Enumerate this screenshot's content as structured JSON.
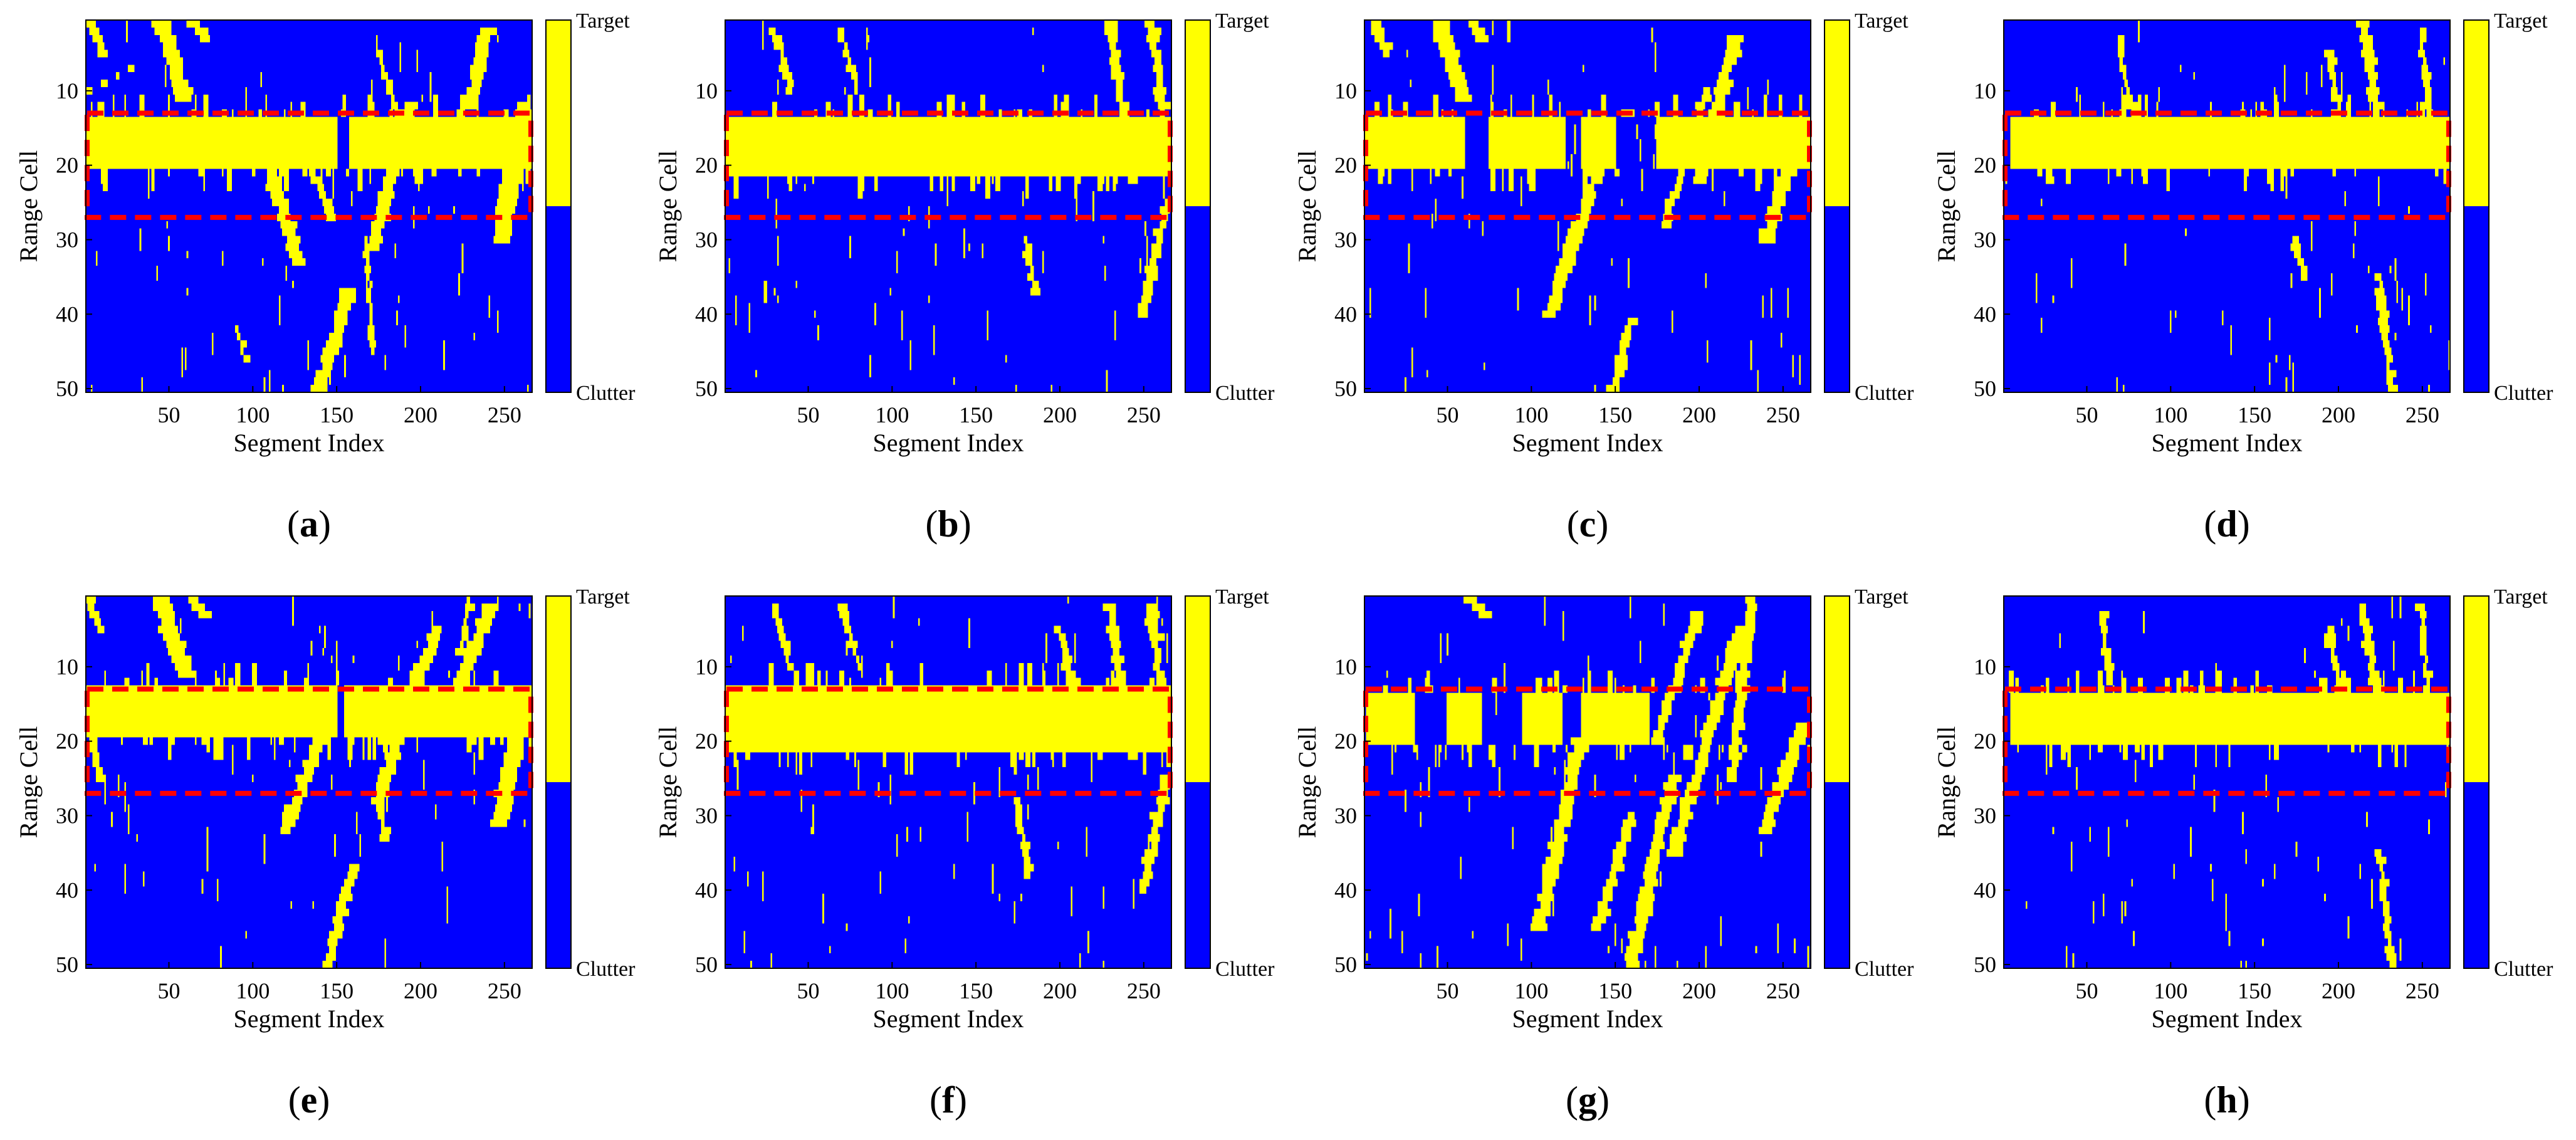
{
  "figure": {
    "colors": {
      "target": "#ffff00",
      "clutter": "#0000ff",
      "box": "#ff0000"
    }
  },
  "chart_data": [
    {
      "panel": "a",
      "caption": "(a)",
      "type": "heatmap",
      "title": "",
      "xlabel": "Segment Index",
      "ylabel": "Range Cell",
      "xlim": [
        1,
        266
      ],
      "ylim": [
        1,
        50
      ],
      "xticks": [
        "50",
        "100",
        "150",
        "200",
        "250"
      ],
      "yticks": [
        "10",
        "20",
        "30",
        "40",
        "50"
      ],
      "colorbar": {
        "top": "Target",
        "bottom": "Clutter"
      },
      "target_box": {
        "x": [
          1,
          266
        ],
        "y": [
          13,
          27
        ]
      },
      "row_band": {
        "start": 14,
        "end": 20,
        "cols": [
          [
            1,
            150
          ],
          [
            158,
            266
          ]
        ]
      },
      "streaks": [
        [
          1,
          0,
          12,
          5,
          3
        ],
        [
          3,
          10,
          28,
          7,
          2
        ],
        [
          45,
          0,
          60,
          11,
          5
        ],
        [
          62,
          0,
          72,
          3,
          4
        ],
        [
          175,
          5,
          200,
          22,
          2
        ],
        [
          110,
          20,
          128,
          33,
          4
        ],
        [
          135,
          20,
          148,
          27,
          3
        ],
        [
          195,
          12,
          172,
          31,
          4
        ],
        [
          240,
          2,
          230,
          12,
          4
        ],
        [
          263,
          12,
          248,
          30,
          5
        ],
        [
          140,
          50,
          158,
          37,
          4
        ],
        [
          168,
          30,
          172,
          45,
          1
        ],
        [
          92,
          42,
          96,
          46,
          1
        ]
      ]
    },
    {
      "panel": "b",
      "caption": "(b)",
      "type": "heatmap",
      "title": "",
      "xlabel": "Segment Index",
      "ylabel": "Range Cell",
      "xlim": [
        1,
        266
      ],
      "ylim": [
        1,
        50
      ],
      "xticks": [
        "50",
        "100",
        "150",
        "200",
        "250"
      ],
      "yticks": [
        "10",
        "20",
        "30",
        "40",
        "50"
      ],
      "colorbar": {
        "top": "Target",
        "bottom": "Clutter"
      },
      "target_box": {
        "x": [
          1,
          266
        ],
        "y": [
          13,
          27
        ]
      },
      "row_band": {
        "start": 14,
        "end": 21,
        "cols": [
          [
            1,
            266
          ]
        ]
      },
      "streaks": [
        [
          230,
          1,
          245,
          22,
          3
        ],
        [
          255,
          1,
          262,
          12,
          3
        ],
        [
          250,
          40,
          264,
          25,
          3
        ],
        [
          180,
          30,
          186,
          37,
          2
        ],
        [
          30,
          2,
          40,
          10,
          2
        ],
        [
          70,
          2,
          80,
          10,
          2
        ]
      ]
    },
    {
      "panel": "c",
      "caption": "(c)",
      "type": "heatmap",
      "title": "",
      "xlabel": "Segment Index",
      "ylabel": "Range Cell",
      "xlim": [
        1,
        266
      ],
      "ylim": [
        1,
        50
      ],
      "xticks": [
        "50",
        "100",
        "150",
        "200",
        "250"
      ],
      "yticks": [
        "10",
        "20",
        "30",
        "40",
        "50"
      ],
      "colorbar": {
        "top": "Target",
        "bottom": "Clutter"
      },
      "target_box": {
        "x": [
          1,
          266
        ],
        "y": [
          13,
          27
        ]
      },
      "row_band": {
        "start": 14,
        "end": 20,
        "cols": [
          [
            1,
            60
          ],
          [
            75,
            120
          ],
          [
            130,
            150
          ],
          [
            175,
            266
          ]
        ]
      },
      "streaks": [
        [
          45,
          0,
          60,
          11,
          5
        ],
        [
          62,
          0,
          72,
          3,
          4
        ],
        [
          112,
          40,
          145,
          17,
          4
        ],
        [
          180,
          28,
          205,
          10,
          3
        ],
        [
          200,
          22,
          222,
          3,
          4
        ],
        [
          240,
          30,
          262,
          15,
          4
        ],
        [
          150,
          50,
          160,
          41,
          3
        ],
        [
          5,
          0,
          15,
          5,
          3
        ]
      ]
    },
    {
      "panel": "d",
      "caption": "(d)",
      "type": "heatmap",
      "title": "",
      "xlabel": "Segment Index",
      "ylabel": "Range Cell",
      "xlim": [
        1,
        266
      ],
      "ylim": [
        1,
        50
      ],
      "xticks": [
        "50",
        "100",
        "150",
        "200",
        "250"
      ],
      "yticks": [
        "10",
        "20",
        "30",
        "40",
        "50"
      ],
      "colorbar": {
        "top": "Target",
        "bottom": "Clutter"
      },
      "target_box": {
        "x": [
          1,
          266
        ],
        "y": [
          13,
          27
        ]
      },
      "row_band": {
        "start": 14,
        "end": 20,
        "cols": [
          [
            5,
            266
          ]
        ]
      },
      "streaks": [
        [
          215,
          1,
          225,
          15,
          3
        ],
        [
          195,
          5,
          205,
          20,
          2
        ],
        [
          250,
          2,
          255,
          15,
          2
        ],
        [
          70,
          3,
          75,
          12,
          2
        ],
        [
          225,
          35,
          232,
          50,
          2
        ],
        [
          175,
          30,
          180,
          35,
          2
        ]
      ]
    },
    {
      "panel": "e",
      "caption": "(e)",
      "type": "heatmap",
      "title": "",
      "xlabel": "Segment Index",
      "ylabel": "Range Cell",
      "xlim": [
        1,
        266
      ],
      "ylim": [
        1,
        50
      ],
      "xticks": [
        "50",
        "100",
        "150",
        "200",
        "250"
      ],
      "yticks": [
        "10",
        "20",
        "30",
        "40",
        "50"
      ],
      "colorbar": {
        "top": "Target",
        "bottom": "Clutter"
      },
      "target_box": {
        "x": [
          1,
          266
        ],
        "y": [
          13,
          27
        ]
      },
      "row_band": {
        "start": 13,
        "end": 19,
        "cols": [
          [
            1,
            150
          ],
          [
            155,
            266
          ]
        ]
      },
      "streaks": [
        [
          1,
          0,
          10,
          5,
          3
        ],
        [
          2,
          18,
          10,
          25,
          2
        ],
        [
          45,
          1,
          60,
          11,
          5
        ],
        [
          62,
          0,
          72,
          3,
          4
        ],
        [
          120,
          32,
          140,
          20,
          4
        ],
        [
          195,
          15,
          175,
          28,
          4
        ],
        [
          210,
          5,
          185,
          20,
          4
        ],
        [
          242,
          2,
          225,
          12,
          4
        ],
        [
          262,
          13,
          248,
          31,
          5
        ],
        [
          145,
          50,
          160,
          37,
          3
        ],
        [
          175,
          28,
          180,
          33,
          2
        ],
        [
          225,
          8,
          230,
          1,
          2
        ]
      ]
    },
    {
      "panel": "f",
      "caption": "(f)",
      "type": "heatmap",
      "title": "",
      "xlabel": "Segment Index",
      "ylabel": "Range Cell",
      "xlim": [
        1,
        266
      ],
      "ylim": [
        1,
        50
      ],
      "xticks": [
        "50",
        "100",
        "150",
        "200",
        "250"
      ],
      "yticks": [
        "10",
        "20",
        "30",
        "40",
        "50"
      ],
      "colorbar": {
        "top": "Target",
        "bottom": "Clutter"
      },
      "target_box": {
        "x": [
          1,
          266
        ],
        "y": [
          13,
          27
        ]
      },
      "row_band": {
        "start": 13,
        "end": 21,
        "cols": [
          [
            1,
            266
          ]
        ]
      },
      "streaks": [
        [
          230,
          2,
          245,
          22,
          3
        ],
        [
          255,
          2,
          262,
          15,
          3
        ],
        [
          250,
          40,
          264,
          25,
          3
        ],
        [
          175,
          28,
          182,
          38,
          2
        ],
        [
          30,
          2,
          40,
          10,
          2
        ],
        [
          70,
          2,
          80,
          10,
          2
        ],
        [
          200,
          5,
          210,
          15,
          2
        ]
      ]
    },
    {
      "panel": "g",
      "caption": "(g)",
      "type": "heatmap",
      "title": "",
      "xlabel": "Segment Index",
      "ylabel": "Range Cell",
      "xlim": [
        1,
        266
      ],
      "ylim": [
        1,
        50
      ],
      "xticks": [
        "50",
        "100",
        "150",
        "200",
        "250"
      ],
      "yticks": [
        "10",
        "20",
        "30",
        "40",
        "50"
      ],
      "colorbar": {
        "top": "Target",
        "bottom": "Clutter"
      },
      "target_box": {
        "x": [
          1,
          266
        ],
        "y": [
          13,
          27
        ]
      },
      "row_band": {
        "start": 14,
        "end": 20,
        "cols": [
          [
            2,
            30
          ],
          [
            50,
            70
          ],
          [
            95,
            118
          ],
          [
            130,
            170
          ]
        ]
      },
      "streaks": [
        [
          62,
          0,
          72,
          3,
          4
        ],
        [
          105,
          45,
          130,
          20,
          4
        ],
        [
          140,
          45,
          160,
          30,
          3
        ],
        [
          160,
          50,
          185,
          25,
          4
        ],
        [
          185,
          35,
          225,
          5,
          4
        ],
        [
          220,
          25,
          232,
          1,
          3
        ],
        [
          240,
          32,
          262,
          18,
          4
        ],
        [
          175,
          20,
          200,
          3,
          3
        ]
      ]
    },
    {
      "panel": "h",
      "caption": "(h)",
      "type": "heatmap",
      "title": "",
      "xlabel": "Segment Index",
      "ylabel": "Range Cell",
      "xlim": [
        1,
        266
      ],
      "ylim": [
        1,
        50
      ],
      "xticks": [
        "50",
        "100",
        "150",
        "200",
        "250"
      ],
      "yticks": [
        "10",
        "20",
        "30",
        "40",
        "50"
      ],
      "colorbar": {
        "top": "Target",
        "bottom": "Clutter"
      },
      "target_box": {
        "x": [
          1,
          266
        ],
        "y": [
          13,
          27
        ]
      },
      "row_band": {
        "start": 14,
        "end": 20,
        "cols": [
          [
            5,
            266
          ]
        ]
      },
      "streaks": [
        [
          215,
          2,
          225,
          15,
          3
        ],
        [
          195,
          5,
          205,
          20,
          2
        ],
        [
          250,
          2,
          255,
          15,
          2
        ],
        [
          225,
          35,
          232,
          50,
          2
        ],
        [
          60,
          3,
          65,
          12,
          2
        ]
      ]
    }
  ]
}
